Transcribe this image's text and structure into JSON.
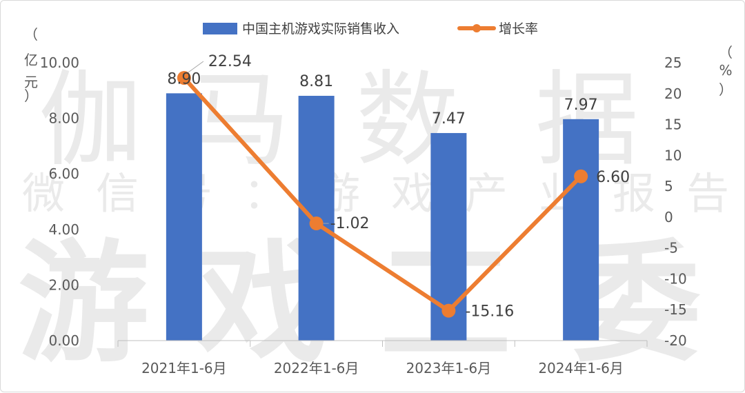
{
  "chart_data": {
    "type": "bar",
    "title": "",
    "categories": [
      "2021年1-6月",
      "2022年1-6月",
      "2023年1-6月",
      "2024年1-6月"
    ],
    "series": [
      {
        "name": "中国主机游戏实际销售收入",
        "kind": "bar",
        "axis": "left",
        "color": "#4472C4",
        "values": [
          8.9,
          8.81,
          7.47,
          7.97
        ],
        "labels": [
          "8.90",
          "8.81",
          "7.47",
          "7.97"
        ]
      },
      {
        "name": "增长率",
        "kind": "line",
        "axis": "right",
        "color": "#ED7D31",
        "values": [
          22.54,
          -1.02,
          -15.16,
          6.6
        ],
        "labels": [
          "22.54",
          "-1.02",
          "-15.16",
          "6.60"
        ]
      }
    ],
    "y_left": {
      "label_chars": [
        "（",
        "亿",
        "元",
        "）"
      ],
      "ylim": [
        0,
        10
      ],
      "ticks": [
        "0.00",
        "2.00",
        "4.00",
        "6.00",
        "8.00",
        "10.00"
      ]
    },
    "y_right": {
      "label_chars": [
        "（",
        "%",
        "）"
      ],
      "ylim": [
        -20,
        25
      ],
      "ticks": [
        "-20",
        "-15",
        "-10",
        "-5",
        "0",
        "5",
        "10",
        "15",
        "20",
        "25"
      ]
    },
    "legend_position": "top-center",
    "grid": false
  },
  "watermark": {
    "line1": [
      "伽",
      "马",
      "数",
      "据"
    ],
    "line2": [
      "微",
      "信",
      "号",
      "：",
      "游",
      "戏",
      "产",
      "业",
      "报",
      "告"
    ],
    "line3": [
      "游",
      "戏",
      "工",
      "委"
    ]
  }
}
